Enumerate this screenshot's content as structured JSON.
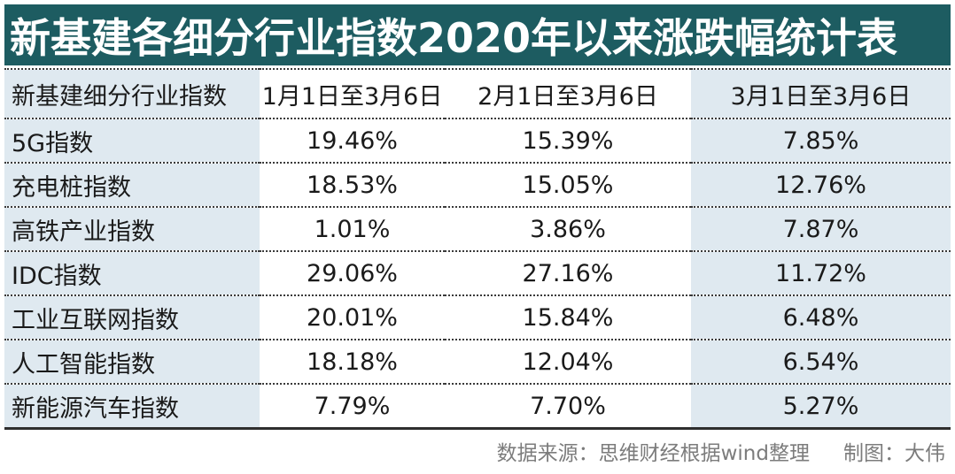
{
  "chart_data": {
    "type": "table",
    "title": "新基建各细分行业指数2020年以来涨跌幅统计表",
    "columns": [
      "新基建细分行业指数",
      "1月1日至3月6日",
      "2月1日至3月6日",
      "3月1日至3月6日"
    ],
    "rows": [
      {
        "name": "5G指数",
        "values": [
          "19.46%",
          "15.39%",
          "7.85%"
        ]
      },
      {
        "name": "充电桩指数",
        "values": [
          "18.53%",
          "15.05%",
          "12.76%"
        ]
      },
      {
        "name": "高铁产业指数",
        "values": [
          "1.01%",
          "3.86%",
          "7.87%"
        ]
      },
      {
        "name": "IDC指数",
        "values": [
          "29.06%",
          "27.16%",
          "11.72%"
        ]
      },
      {
        "name": "工业互联网指数",
        "values": [
          "20.01%",
          "15.84%",
          "6.48%"
        ]
      },
      {
        "name": "人工智能指数",
        "values": [
          "18.18%",
          "12.04%",
          "6.54%"
        ]
      },
      {
        "name": "新能源汽车指数",
        "values": [
          "7.79%",
          "7.70%",
          "5.27%"
        ]
      }
    ],
    "source_note": "数据来源：思维财经根据wind整理",
    "credit": "制图：大伟",
    "legend_position": "none",
    "grid": "dotted-row-separators"
  },
  "colors": {
    "title_bg": "#1d5c61",
    "title_text": "#ffffff",
    "highlight_column_bg": "#dfe9f0",
    "body_text": "#1a1a1a",
    "footer_text": "#7c7c7c",
    "separator": "#3a3a3a"
  }
}
